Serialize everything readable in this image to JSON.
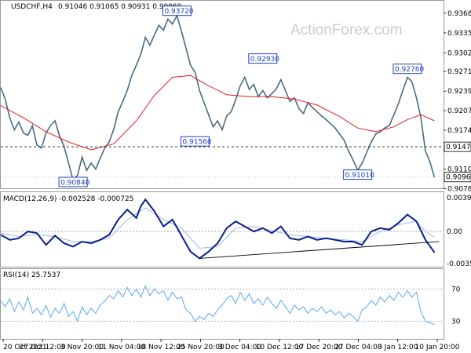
{
  "chart_data": {
    "symbol": "USDCHF,H4",
    "ohlc_values": "0.91046 0.91065 0.90931 0.90969",
    "watermark": "ActionForex.com",
    "x_tick_labels": [
      "20 Oct 2021",
      "27 Oct 12:00",
      "3 Nov 20:00",
      "11 Nov 04:00",
      "18 Nov 12:00",
      "25 Nov 20:00",
      "3 Dec 04:00",
      "10 Dec 12:00",
      "17 Dec 20:00",
      "27 Dec 04:00",
      "3 Jan 12:00",
      "10 Jan 20:00"
    ],
    "price": {
      "type": "line",
      "ylim": [
        0.9081,
        0.9382
      ],
      "yticks": [
        "0.93680",
        "0.93355",
        "0.93025",
        "0.92715",
        "0.92390",
        "0.92070",
        "0.91745",
        "0.91425",
        "0.91100",
        "0.90780"
      ],
      "close_path": [
        [
          0,
          0.9245
        ],
        [
          2,
          0.9225
        ],
        [
          4,
          0.9195
        ],
        [
          6,
          0.9175
        ],
        [
          8,
          0.9188
        ],
        [
          10,
          0.917
        ],
        [
          12,
          0.9166
        ],
        [
          14,
          0.9182
        ],
        [
          16,
          0.915
        ],
        [
          18,
          0.9145
        ],
        [
          20,
          0.917
        ],
        [
          22,
          0.9182
        ],
        [
          24,
          0.919
        ],
        [
          26,
          0.9165
        ],
        [
          28,
          0.9148
        ],
        [
          30,
          0.912
        ],
        [
          32,
          0.9092
        ],
        [
          34,
          0.91
        ],
        [
          36,
          0.913
        ],
        [
          38,
          0.9108
        ],
        [
          40,
          0.912
        ],
        [
          42,
          0.911
        ],
        [
          44,
          0.9128
        ],
        [
          46,
          0.9145
        ],
        [
          48,
          0.9155
        ],
        [
          50,
          0.9176
        ],
        [
          52,
          0.9205
        ],
        [
          54,
          0.9222
        ],
        [
          56,
          0.924
        ],
        [
          58,
          0.9265
        ],
        [
          60,
          0.9282
        ],
        [
          62,
          0.93
        ],
        [
          64,
          0.9328
        ],
        [
          66,
          0.9315
        ],
        [
          68,
          0.9332
        ],
        [
          70,
          0.9348
        ],
        [
          72,
          0.934
        ],
        [
          74,
          0.9358
        ],
        [
          76,
          0.935
        ],
        [
          78,
          0.9364
        ],
        [
          80,
          0.9338
        ],
        [
          82,
          0.931
        ],
        [
          84,
          0.9282
        ],
        [
          86,
          0.927
        ],
        [
          88,
          0.924
        ],
        [
          90,
          0.922
        ],
        [
          92,
          0.92
        ],
        [
          94,
          0.918
        ],
        [
          96,
          0.919
        ],
        [
          98,
          0.9175
        ],
        [
          100,
          0.9198
        ],
        [
          102,
          0.9205
        ],
        [
          104,
          0.9225
        ],
        [
          106,
          0.9248
        ],
        [
          108,
          0.9262
        ],
        [
          110,
          0.9242
        ],
        [
          112,
          0.925
        ],
        [
          114,
          0.923
        ],
        [
          116,
          0.924
        ],
        [
          118,
          0.9228
        ],
        [
          120,
          0.9235
        ],
        [
          122,
          0.9243
        ],
        [
          124,
          0.9258
        ],
        [
          126,
          0.924
        ],
        [
          128,
          0.9222
        ],
        [
          130,
          0.9228
        ],
        [
          132,
          0.921
        ],
        [
          134,
          0.9202
        ],
        [
          136,
          0.922
        ],
        [
          138,
          0.9212
        ],
        [
          140,
          0.9205
        ],
        [
          142,
          0.9198
        ],
        [
          144,
          0.9192
        ],
        [
          146,
          0.9185
        ],
        [
          148,
          0.9178
        ],
        [
          150,
          0.9168
        ],
        [
          152,
          0.9158
        ],
        [
          154,
          0.914
        ],
        [
          156,
          0.9125
        ],
        [
          158,
          0.9108
        ],
        [
          160,
          0.912
        ],
        [
          162,
          0.9138
        ],
        [
          164,
          0.9155
        ],
        [
          166,
          0.9168
        ],
        [
          168,
          0.9172
        ],
        [
          170,
          0.9178
        ],
        [
          172,
          0.9182
        ],
        [
          174,
          0.92
        ],
        [
          176,
          0.9218
        ],
        [
          178,
          0.924
        ],
        [
          180,
          0.9262
        ],
        [
          182,
          0.9255
        ],
        [
          184,
          0.9228
        ],
        [
          186,
          0.9195
        ],
        [
          188,
          0.914
        ],
        [
          190,
          0.9122
        ],
        [
          192,
          0.9096
        ]
      ],
      "ma_path": [
        [
          0,
          0.9215
        ],
        [
          10,
          0.9195
        ],
        [
          20,
          0.9172
        ],
        [
          30,
          0.9155
        ],
        [
          40,
          0.9142
        ],
        [
          50,
          0.9152
        ],
        [
          60,
          0.919
        ],
        [
          68,
          0.9232
        ],
        [
          76,
          0.9262
        ],
        [
          84,
          0.9265
        ],
        [
          92,
          0.9248
        ],
        [
          100,
          0.9233
        ],
        [
          110,
          0.923
        ],
        [
          120,
          0.923
        ],
        [
          130,
          0.9226
        ],
        [
          140,
          0.9216
        ],
        [
          150,
          0.9197
        ],
        [
          158,
          0.9178
        ],
        [
          166,
          0.9172
        ],
        [
          174,
          0.918
        ],
        [
          180,
          0.9192
        ],
        [
          186,
          0.92
        ],
        [
          192,
          0.919
        ]
      ],
      "horizontal_level": 0.9147,
      "current_level": 0.90969,
      "labels": [
        {
          "text": "0.93720",
          "x": 78,
          "y": 0.9372
        },
        {
          "text": "0.91560",
          "x": 86,
          "y": 0.9156
        },
        {
          "text": "0.92930",
          "x": 116,
          "y": 0.9293
        },
        {
          "text": "0.92760",
          "x": 180,
          "y": 0.9276
        },
        {
          "text": "0.91010",
          "x": 158,
          "y": 0.9101
        },
        {
          "text": "0.90840",
          "x": 32,
          "y": 0.9084
        }
      ],
      "level_labels": [
        "0.91470",
        "0.90969"
      ]
    },
    "macd": {
      "type": "line",
      "title": "MACD(12,26,9) -0.002528 -0.000725",
      "ylim": [
        -0.004,
        0.0042
      ],
      "yticks": [
        "0.003944",
        "0.00",
        "-0.003506"
      ],
      "zero_level": 0.0,
      "main_path": [
        [
          0,
          -0.0004
        ],
        [
          4,
          -0.001
        ],
        [
          8,
          -0.0008
        ],
        [
          12,
          0.0
        ],
        [
          16,
          -0.0002
        ],
        [
          20,
          -0.0016
        ],
        [
          24,
          -0.0005
        ],
        [
          28,
          -0.0014
        ],
        [
          32,
          -0.0018
        ],
        [
          36,
          -0.0012
        ],
        [
          40,
          -0.0014
        ],
        [
          44,
          -0.001
        ],
        [
          48,
          -0.0004
        ],
        [
          52,
          0.0014
        ],
        [
          56,
          0.0026
        ],
        [
          60,
          0.0016
        ],
        [
          62,
          0.003
        ],
        [
          64,
          0.0038
        ],
        [
          68,
          0.0024
        ],
        [
          72,
          0.0006
        ],
        [
          76,
          0.0014
        ],
        [
          80,
          -0.0005
        ],
        [
          84,
          -0.0024
        ],
        [
          88,
          -0.0032
        ],
        [
          92,
          -0.0024
        ],
        [
          96,
          -0.0014
        ],
        [
          100,
          0.0004
        ],
        [
          104,
          0.0012
        ],
        [
          108,
          0.0006
        ],
        [
          112,
          0.0
        ],
        [
          116,
          0.0004
        ],
        [
          120,
          -0.0002
        ],
        [
          124,
          0.0006
        ],
        [
          128,
          -0.0008
        ],
        [
          132,
          -0.001
        ],
        [
          136,
          -0.0006
        ],
        [
          140,
          -0.001
        ],
        [
          144,
          -0.0008
        ],
        [
          148,
          -0.001
        ],
        [
          152,
          -0.0012
        ],
        [
          156,
          -0.0012
        ],
        [
          160,
          -0.0016
        ],
        [
          164,
          0.0
        ],
        [
          168,
          0.0004
        ],
        [
          172,
          0.0002
        ],
        [
          176,
          0.001
        ],
        [
          180,
          0.002
        ],
        [
          184,
          0.0012
        ],
        [
          188,
          -0.001
        ],
        [
          192,
          -0.0025
        ]
      ],
      "signal_path": [
        [
          0,
          -0.0002
        ],
        [
          8,
          -0.0006
        ],
        [
          16,
          -0.0004
        ],
        [
          24,
          -0.0006
        ],
        [
          32,
          -0.0012
        ],
        [
          40,
          -0.0012
        ],
        [
          48,
          -0.0008
        ],
        [
          56,
          0.0014
        ],
        [
          64,
          0.0028
        ],
        [
          72,
          0.0014
        ],
        [
          80,
          0.0004
        ],
        [
          88,
          -0.002
        ],
        [
          96,
          -0.0018
        ],
        [
          104,
          0.0004
        ],
        [
          112,
          0.0006
        ],
        [
          120,
          0.0001
        ],
        [
          128,
          -0.0004
        ],
        [
          136,
          -0.0006
        ],
        [
          144,
          -0.0008
        ],
        [
          152,
          -0.001
        ],
        [
          160,
          -0.0012
        ],
        [
          168,
          0.0
        ],
        [
          176,
          0.0008
        ],
        [
          184,
          0.0012
        ],
        [
          188,
          0.0
        ],
        [
          192,
          -0.0007
        ]
      ],
      "trendline": [
        [
          88,
          -0.0032
        ],
        [
          194,
          -0.0012
        ]
      ]
    },
    "rsi": {
      "type": "line",
      "title": "RSI(14) 25.7537",
      "ylim": [
        10,
        90
      ],
      "yticks": [
        "70",
        "30"
      ],
      "levels": [
        70,
        30
      ],
      "path": [
        [
          0,
          55
        ],
        [
          2,
          48
        ],
        [
          4,
          58
        ],
        [
          6,
          42
        ],
        [
          8,
          54
        ],
        [
          10,
          44
        ],
        [
          12,
          60
        ],
        [
          14,
          40
        ],
        [
          16,
          46
        ],
        [
          18,
          38
        ],
        [
          20,
          50
        ],
        [
          22,
          35
        ],
        [
          24,
          46
        ],
        [
          26,
          40
        ],
        [
          28,
          52
        ],
        [
          30,
          36
        ],
        [
          32,
          42
        ],
        [
          34,
          30
        ],
        [
          36,
          48
        ],
        [
          38,
          38
        ],
        [
          40,
          46
        ],
        [
          42,
          40
        ],
        [
          44,
          50
        ],
        [
          46,
          55
        ],
        [
          48,
          62
        ],
        [
          50,
          58
        ],
        [
          52,
          68
        ],
        [
          54,
          60
        ],
        [
          56,
          72
        ],
        [
          58,
          62
        ],
        [
          60,
          70
        ],
        [
          62,
          60
        ],
        [
          64,
          74
        ],
        [
          66,
          62
        ],
        [
          68,
          70
        ],
        [
          70,
          64
        ],
        [
          72,
          68
        ],
        [
          74,
          56
        ],
        [
          76,
          66
        ],
        [
          78,
          58
        ],
        [
          80,
          60
        ],
        [
          82,
          44
        ],
        [
          84,
          40
        ],
        [
          86,
          30
        ],
        [
          88,
          36
        ],
        [
          90,
          32
        ],
        [
          92,
          40
        ],
        [
          94,
          36
        ],
        [
          96,
          44
        ],
        [
          98,
          50
        ],
        [
          100,
          58
        ],
        [
          102,
          62
        ],
        [
          104,
          52
        ],
        [
          106,
          66
        ],
        [
          108,
          56
        ],
        [
          110,
          64
        ],
        [
          112,
          52
        ],
        [
          114,
          58
        ],
        [
          116,
          50
        ],
        [
          118,
          60
        ],
        [
          120,
          52
        ],
        [
          122,
          46
        ],
        [
          124,
          56
        ],
        [
          126,
          48
        ],
        [
          128,
          40
        ],
        [
          130,
          50
        ],
        [
          132,
          44
        ],
        [
          134,
          48
        ],
        [
          136,
          40
        ],
        [
          138,
          46
        ],
        [
          140,
          42
        ],
        [
          142,
          48
        ],
        [
          144,
          40
        ],
        [
          146,
          44
        ],
        [
          148,
          38
        ],
        [
          150,
          42
        ],
        [
          152,
          34
        ],
        [
          154,
          40
        ],
        [
          156,
          36
        ],
        [
          158,
          30
        ],
        [
          160,
          44
        ],
        [
          162,
          48
        ],
        [
          164,
          56
        ],
        [
          166,
          50
        ],
        [
          168,
          60
        ],
        [
          170,
          54
        ],
        [
          172,
          62
        ],
        [
          174,
          56
        ],
        [
          176,
          66
        ],
        [
          178,
          60
        ],
        [
          180,
          68
        ],
        [
          182,
          60
        ],
        [
          184,
          66
        ],
        [
          186,
          42
        ],
        [
          188,
          30
        ],
        [
          190,
          28
        ],
        [
          192,
          26
        ]
      ]
    },
    "colors": {
      "price": "#4a6b80",
      "ma": "#e02020",
      "macd_main": "#0a1f8a",
      "macd_signal": "#a0b8e8",
      "rsi": "#5aa8f0",
      "label_border": "#1f3fbf",
      "grid_dash": "#9a9a9a"
    }
  }
}
